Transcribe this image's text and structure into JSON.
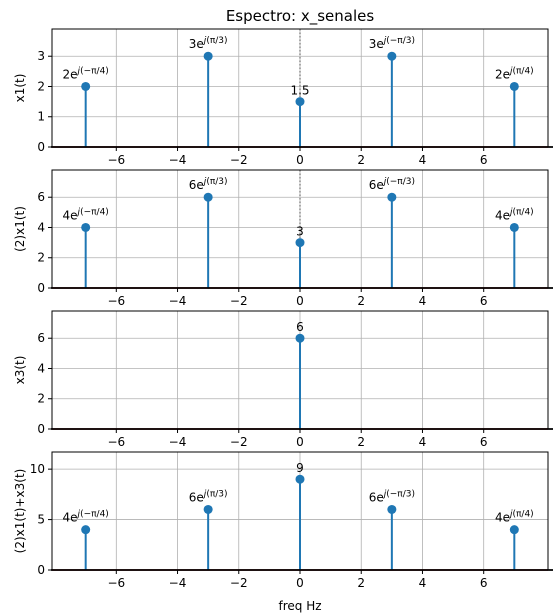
{
  "chart_data": {
    "type": "stem",
    "title": "Espectro: x_senales",
    "xlabel": "freq Hz",
    "xlim": [
      -8.1,
      8.1
    ],
    "xticks": [
      -6,
      -4,
      -2,
      0,
      2,
      4,
      6
    ],
    "grid": true,
    "colors": {
      "stem": "#1f77b4",
      "baseline": "#d62728",
      "grid": "#b0b0b0",
      "guide": "#555555"
    },
    "subplots": [
      {
        "ylabel": "x1(t)",
        "ylim": [
          0,
          3.9
        ],
        "yticks": [
          0,
          1,
          2,
          3
        ],
        "show_xticks": true,
        "guide_at_zero": true,
        "points": [
          {
            "x": -7,
            "y": 2,
            "mag": "2",
            "phase": "−π/4"
          },
          {
            "x": -3,
            "y": 3,
            "mag": "3",
            "phase": "π/3"
          },
          {
            "x": 0,
            "y": 1.5,
            "label": "1.5"
          },
          {
            "x": 3,
            "y": 3,
            "mag": "3",
            "phase": "−π/3"
          },
          {
            "x": 7,
            "y": 2,
            "mag": "2",
            "phase": "π/4"
          }
        ]
      },
      {
        "ylabel": "(2)x1(t)",
        "ylim": [
          0,
          7.8
        ],
        "yticks": [
          0,
          2,
          4,
          6
        ],
        "show_xticks": true,
        "guide_at_zero": true,
        "points": [
          {
            "x": -7,
            "y": 4,
            "mag": "4",
            "phase": "−π/4"
          },
          {
            "x": -3,
            "y": 6,
            "mag": "6",
            "phase": "π/3"
          },
          {
            "x": 0,
            "y": 3,
            "label": "3"
          },
          {
            "x": 3,
            "y": 6,
            "mag": "6",
            "phase": "−π/3"
          },
          {
            "x": 7,
            "y": 4,
            "mag": "4",
            "phase": "π/4"
          }
        ]
      },
      {
        "ylabel": "x3(t)",
        "ylim": [
          0,
          7.8
        ],
        "yticks": [
          0,
          2,
          4,
          6
        ],
        "show_xticks": true,
        "guide_at_zero": false,
        "points": [
          {
            "x": 0,
            "y": 6,
            "label": "6"
          }
        ]
      },
      {
        "ylabel": "(2)x1(t)+x3(t)",
        "ylim": [
          0,
          11.7
        ],
        "yticks": [
          0,
          5,
          10
        ],
        "show_xticks": true,
        "guide_at_zero": false,
        "points": [
          {
            "x": -7,
            "y": 4,
            "mag": "4",
            "phase": "−π/4"
          },
          {
            "x": -3,
            "y": 6,
            "mag": "6",
            "phase": "π/3"
          },
          {
            "x": 0,
            "y": 9,
            "label": "9"
          },
          {
            "x": 3,
            "y": 6,
            "mag": "6",
            "phase": "−π/3"
          },
          {
            "x": 7,
            "y": 4,
            "mag": "4",
            "phase": "π/4"
          }
        ]
      }
    ]
  }
}
